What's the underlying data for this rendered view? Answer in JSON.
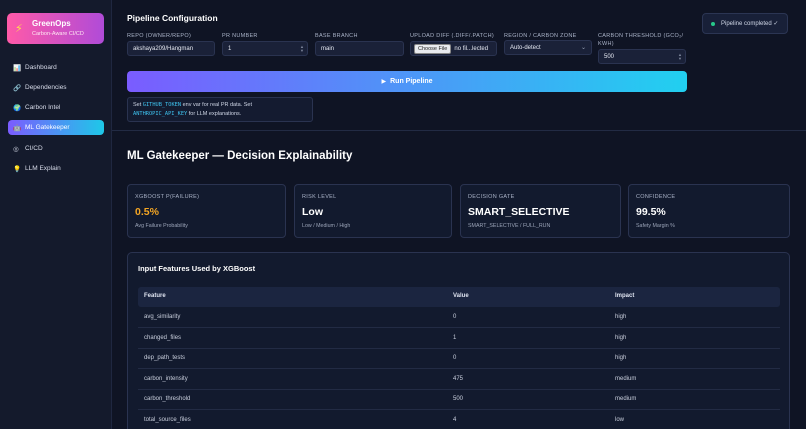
{
  "sidebar": {
    "brand_title": "GreenOps",
    "brand_subtitle": "Carbon-Aware CI/CD",
    "items": [
      {
        "icon": "bar-chart-icon",
        "glyph": "📊",
        "label": "Dashboard",
        "active": false
      },
      {
        "icon": "link-icon",
        "glyph": "🔗",
        "label": "Dependencies",
        "active": false
      },
      {
        "icon": "globe-icon",
        "glyph": "🌍",
        "label": "Carbon Intel",
        "active": false
      },
      {
        "icon": "robot-icon",
        "glyph": "🤖",
        "label": "ML Gatekeeper",
        "active": true
      },
      {
        "icon": "cycle-icon",
        "glyph": "◎",
        "label": "CI/CD",
        "active": false
      },
      {
        "icon": "lightbulb-icon",
        "glyph": "💡",
        "label": "LLM Explain",
        "active": false
      }
    ]
  },
  "config": {
    "title": "Pipeline Configuration",
    "toast": "Pipeline completed ✓",
    "fields": {
      "repo": {
        "label": "REPO (OWNER/REPO)",
        "value": "akshaya209/Hangman"
      },
      "pr": {
        "label": "PR NUMBER",
        "value": "1"
      },
      "branch": {
        "label": "BASE BRANCH",
        "value": "main"
      },
      "diff": {
        "label": "UPLOAD DIFF (.DIFF/.PATCH)",
        "button": "Choose File",
        "filename": "no fil...lected"
      },
      "region": {
        "label": "REGION / CARBON ZONE",
        "value": "Auto-detect"
      },
      "threshold": {
        "label_line1": "CARBON THRESHOLD (GCO₂/",
        "label_line2": "KWH)",
        "value": "500"
      }
    },
    "run_button": "Run Pipeline",
    "hint": {
      "t1": "Set ",
      "c1": "GITHUB_TOKEN",
      "t2": " env var for real PR data. Set",
      "c2": "ANTHROPIC_API_KEY",
      "t3": " for LLM explanations."
    }
  },
  "gatekeeper": {
    "title": "ML Gatekeeper — Decision Explainability",
    "cards": [
      {
        "label": "XGBOOST P(FAILURE)",
        "value": "0.5%",
        "sub": "Avg Failure Probability",
        "color": "#f5a623"
      },
      {
        "label": "RISK LEVEL",
        "value": "Low",
        "sub": "Low / Medium / High",
        "color": "#ffffff"
      },
      {
        "label": "DECISION GATE",
        "value": "SMART_SELECTIVE",
        "sub": "SMART_SELECTIVE / FULL_RUN",
        "color": "#ffffff"
      },
      {
        "label": "CONFIDENCE",
        "value": "99.5%",
        "sub": "Safety Margin %",
        "color": "#ffffff"
      }
    ],
    "features": {
      "title": "Input Features Used by XGBoost",
      "columns": [
        "Feature",
        "Value",
        "Impact"
      ],
      "rows": [
        {
          "feature": "avg_similarity",
          "value": "0",
          "impact": "high"
        },
        {
          "feature": "changed_files",
          "value": "1",
          "impact": "high"
        },
        {
          "feature": "dep_path_tests",
          "value": "0",
          "impact": "high"
        },
        {
          "feature": "carbon_intensity",
          "value": "475",
          "impact": "medium"
        },
        {
          "feature": "carbon_threshold",
          "value": "500",
          "impact": "medium"
        },
        {
          "feature": "total_source_files",
          "value": "4",
          "impact": "low"
        }
      ]
    }
  }
}
